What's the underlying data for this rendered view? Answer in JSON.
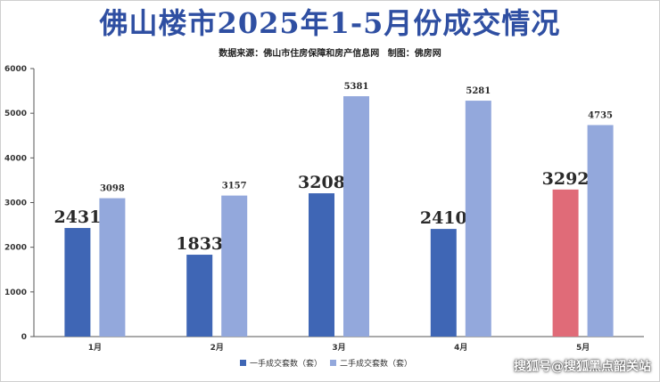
{
  "header": {
    "title": "佛山楼市2025年1-5月份成交情况",
    "source": "数据来源：佛山市住房保障和房产信息网    制图：佛房网"
  },
  "watermark": "搜狐号@搜狐黑点韶关站",
  "chart_data": {
    "type": "bar",
    "categories": [
      "1月",
      "2月",
      "3月",
      "4月",
      "5月"
    ],
    "series": [
      {
        "name": "一手成交套数（套）",
        "values": [
          2431,
          1833,
          3208,
          2410,
          3292
        ],
        "color": "#3f66b5",
        "highlight": {
          "index": 4,
          "color": "#e06b78"
        }
      },
      {
        "name": "二手成交套数（套）",
        "values": [
          3098,
          3157,
          5381,
          5281,
          4735
        ],
        "color": "#93a8dc"
      }
    ],
    "ylim": [
      0,
      6000
    ],
    "yticks": [
      0,
      1000,
      2000,
      3000,
      4000,
      5000,
      6000
    ],
    "grid": false,
    "legend": "bottom"
  }
}
